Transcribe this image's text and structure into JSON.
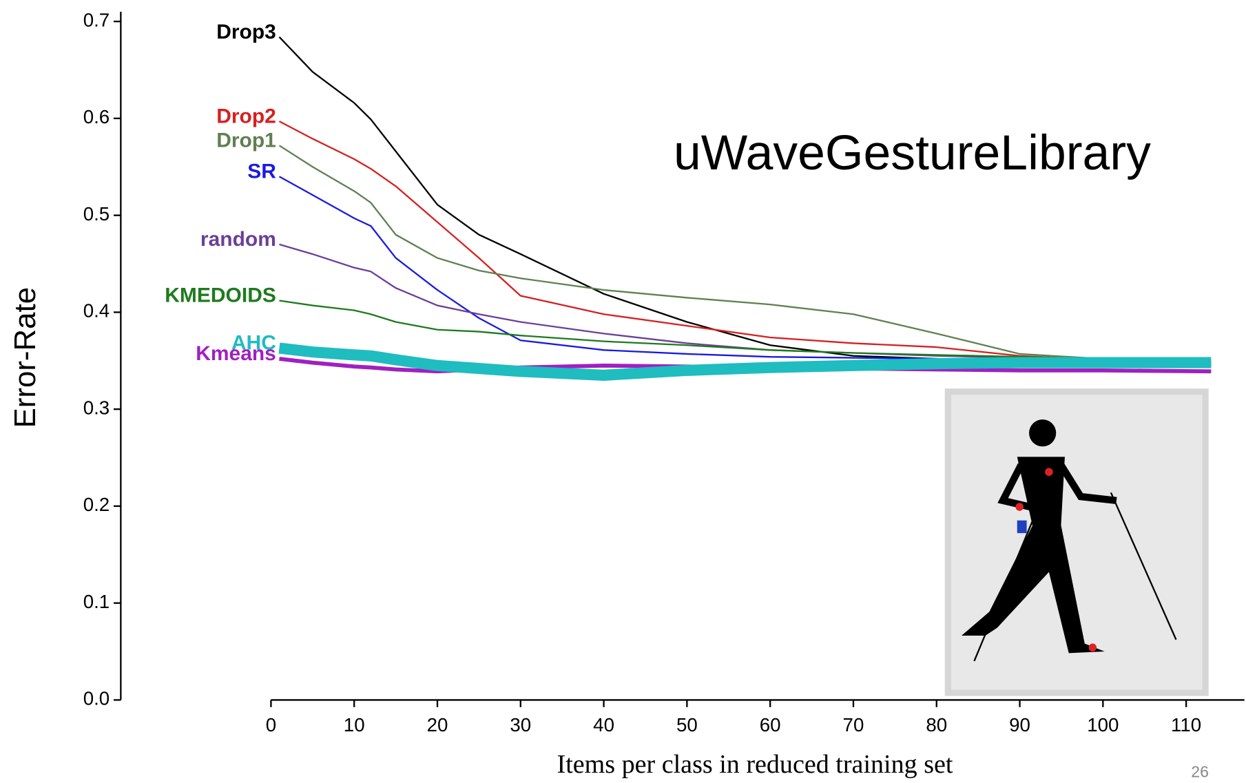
{
  "chart_data": {
    "type": "line",
    "title": "uWaveGestureLibrary",
    "x_label": "Items per class in reduced training set",
    "y_label": "Error-Rate",
    "x": [
      1,
      5,
      10,
      12,
      15,
      20,
      25,
      30,
      40,
      50,
      60,
      70,
      80,
      90,
      100,
      113
    ],
    "series": [
      {
        "name": "Drop3",
        "color": "#000000",
        "values": [
          0.684,
          0.648,
          0.616,
          0.599,
          0.566,
          0.511,
          0.48,
          0.46,
          0.419,
          0.39,
          0.366,
          0.355,
          0.352,
          0.349,
          0.347,
          0.345
        ]
      },
      {
        "name": "Drop2",
        "color": "#d62020",
        "values": [
          0.597,
          0.579,
          0.558,
          0.548,
          0.53,
          0.493,
          0.456,
          0.417,
          0.398,
          0.386,
          0.374,
          0.368,
          0.364,
          0.355,
          0.351,
          0.347
        ]
      },
      {
        "name": "Drop1",
        "color": "#5f8050",
        "values": [
          0.572,
          0.55,
          0.525,
          0.513,
          0.48,
          0.456,
          0.443,
          0.435,
          0.423,
          0.415,
          0.408,
          0.398,
          0.378,
          0.357,
          0.352,
          0.349
        ]
      },
      {
        "name": "SR",
        "color": "#1a1ae0",
        "values": [
          0.54,
          0.521,
          0.497,
          0.489,
          0.456,
          0.423,
          0.394,
          0.371,
          0.361,
          0.357,
          0.354,
          0.353,
          0.352,
          0.35,
          0.349,
          0.348
        ]
      },
      {
        "name": "random",
        "color": "#6a3f99",
        "values": [
          0.47,
          0.46,
          0.446,
          0.442,
          0.425,
          0.407,
          0.398,
          0.39,
          0.378,
          0.368,
          0.361,
          0.358,
          0.355,
          0.353,
          0.351,
          0.349
        ]
      },
      {
        "name": "KMEDOIDS",
        "color": "#1e7a1e",
        "values": [
          0.412,
          0.407,
          0.402,
          0.398,
          0.39,
          0.382,
          0.38,
          0.376,
          0.37,
          0.366,
          0.361,
          0.358,
          0.356,
          0.354,
          0.352,
          0.349
        ]
      },
      {
        "name": "AHC",
        "color": "#1fbcc0",
        "values": [
          0.363,
          0.359,
          0.356,
          0.355,
          0.351,
          0.345,
          0.342,
          0.339,
          0.335,
          0.34,
          0.343,
          0.345,
          0.347,
          0.348,
          0.348,
          0.348
        ]
      },
      {
        "name": "Kmeans",
        "color": "#a020c0",
        "values": [
          0.352,
          0.348,
          0.344,
          0.343,
          0.341,
          0.339,
          0.341,
          0.343,
          0.345,
          0.344,
          0.343,
          0.342,
          0.341,
          0.34,
          0.34,
          0.339
        ]
      }
    ],
    "xlim": [
      0,
      117
    ],
    "ylim": [
      0,
      0.71
    ],
    "xticks": [
      0,
      10,
      20,
      30,
      40,
      50,
      60,
      70,
      80,
      90,
      100,
      110
    ],
    "yticks": [
      {
        "value": 0,
        "label": "0.0"
      },
      0.1,
      0.2,
      0.3,
      0.4,
      0.5,
      0.6,
      0.7
    ]
  },
  "page_number": "26"
}
